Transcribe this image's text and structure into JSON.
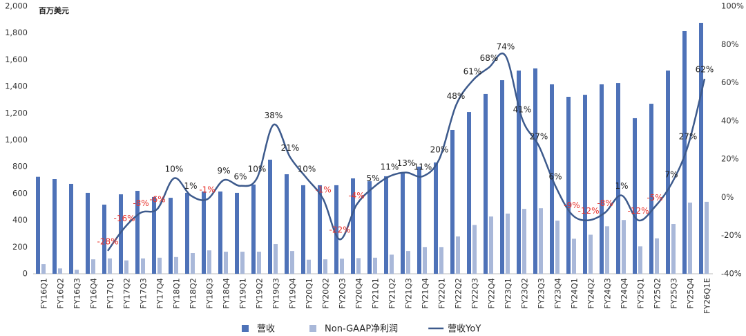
{
  "chart_data": {
    "type": "bar+line",
    "y_axis_label": "百万美元",
    "categories": [
      "FY16Q1",
      "FY16Q2",
      "FY16Q3",
      "FY16Q4",
      "FY17Q1",
      "FY17Q2",
      "FY17Q3",
      "FY17Q4",
      "FY18Q1",
      "FY18Q2",
      "FY18Q3",
      "FY18Q4",
      "FY19Q1",
      "FY19Q2",
      "FY19Q3",
      "FY19Q4",
      "FY20Q1",
      "FY20Q2",
      "FY20Q3",
      "FY20Q4",
      "FY21Q1",
      "FY21Q2",
      "FY21Q3",
      "FY21Q4",
      "FY22Q1",
      "FY22Q2",
      "FY22Q3",
      "FY22Q4",
      "FY23Q1",
      "FY23Q2",
      "FY23Q3",
      "FY23Q4",
      "FY24Q1",
      "FY24Q2",
      "FY24Q3",
      "FY24Q4",
      "FY25Q1",
      "FY25Q2",
      "FY25Q3",
      "FY25Q4",
      "FY26Q1E"
    ],
    "series": [
      {
        "name": "营收",
        "type": "bar",
        "color": "#4e72b8",
        "values": [
          725,
          708,
          672,
          605,
          517,
          594,
          620,
          574,
          568,
          605,
          615,
          615,
          605,
          667,
          853,
          744,
          662,
          662,
          662,
          713,
          692,
          729,
          755,
          801,
          832,
          1075,
          1209,
          1344,
          1447,
          1519,
          1535,
          1416,
          1323,
          1338,
          1416,
          1426,
          1163,
          1271,
          1519,
          1814,
          1876
        ]
      },
      {
        "name": "Non-GAAP净利润",
        "type": "bar",
        "color": "#a9b8d9",
        "values": [
          72,
          40,
          30,
          108,
          115,
          100,
          115,
          120,
          125,
          155,
          175,
          165,
          165,
          165,
          222,
          170,
          105,
          108,
          113,
          117,
          120,
          143,
          170,
          200,
          200,
          279,
          365,
          428,
          450,
          485,
          490,
          397,
          262,
          292,
          355,
          402,
          205,
          265,
          372,
          532,
          538
        ]
      },
      {
        "name": "营收YoY",
        "type": "line",
        "axis": "y2",
        "color": "#3d5a8c",
        "values": [
          null,
          null,
          null,
          null,
          -28,
          -16,
          -8,
          -6,
          10,
          1,
          -1,
          9,
          6,
          10,
          38,
          21,
          10,
          -1,
          -22,
          -4,
          5,
          11,
          13,
          11,
          20,
          48,
          61,
          68,
          74,
          41,
          27,
          6,
          -9,
          -12,
          -8,
          1,
          -12,
          -5,
          7,
          27,
          62
        ],
        "value_labels": [
          null,
          null,
          null,
          null,
          "-28%",
          "-16%",
          "-8%",
          "-6%",
          "10%",
          "1%",
          "-1%",
          "9%",
          "6%",
          "10%",
          "38%",
          "21%",
          "10%",
          "-1%",
          "-22%",
          "-4%",
          "5%",
          "11%",
          "13%",
          "11%",
          "20%",
          "48%",
          "61%",
          "68%",
          "74%",
          "41%",
          "27%",
          "6%",
          "-9%",
          "-12%",
          "-8%",
          "1%",
          "-12%",
          "-5%",
          "7%",
          "27%",
          "62%"
        ],
        "negative_label_color": "#e8312a"
      }
    ],
    "ylim": [
      0,
      2000
    ],
    "yticks": [
      0,
      200,
      400,
      600,
      800,
      {
        "value": 1000,
        "label": "1,000"
      },
      {
        "value": 1200,
        "label": "1,200"
      },
      {
        "value": 1400,
        "label": "1,400"
      },
      {
        "value": 1600,
        "label": "1,600"
      },
      {
        "value": 1800,
        "label": "1,800"
      },
      {
        "value": 2000,
        "label": "2,000"
      }
    ],
    "y2lim": [
      -40,
      100
    ],
    "y2ticks": [
      {
        "value": -40,
        "label": "-40%"
      },
      {
        "value": -20,
        "label": "-20%"
      },
      {
        "value": 0,
        "label": "0%"
      },
      {
        "value": 20,
        "label": "20%"
      },
      {
        "value": 40,
        "label": "40%"
      },
      {
        "value": 60,
        "label": "60%"
      },
      {
        "value": 80,
        "label": "80%"
      },
      {
        "value": 100,
        "label": "100%"
      }
    ],
    "legend": "bottom"
  }
}
